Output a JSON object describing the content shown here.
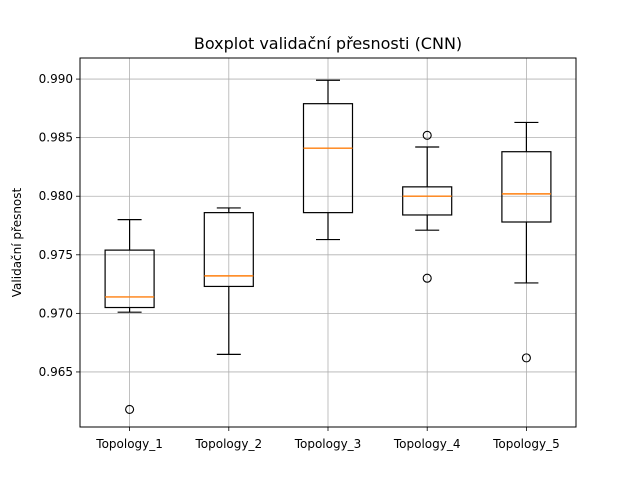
{
  "chart_data": {
    "type": "box",
    "title": "Boxplot validační přesnosti (CNN)",
    "xlabel": "",
    "ylabel": "Validační přesnost",
    "ylim": [
      0.9603,
      0.9918
    ],
    "yticks": [
      0.965,
      0.97,
      0.975,
      0.98,
      0.985,
      0.99
    ],
    "ytick_labels": [
      "0.965",
      "0.970",
      "0.975",
      "0.980",
      "0.985",
      "0.990"
    ],
    "grid": true,
    "categories": [
      "Topology_1",
      "Topology_2",
      "Topology_3",
      "Topology_4",
      "Topology_5"
    ],
    "boxes": [
      {
        "whisker_low": 0.9701,
        "q1": 0.9705,
        "median": 0.9714,
        "q3": 0.9754,
        "whisker_high": 0.978,
        "outliers": [
          0.9618
        ]
      },
      {
        "whisker_low": 0.9665,
        "q1": 0.9723,
        "median": 0.9732,
        "q3": 0.9786,
        "whisker_high": 0.979,
        "outliers": []
      },
      {
        "whisker_low": 0.9763,
        "q1": 0.9786,
        "median": 0.9841,
        "q3": 0.9879,
        "whisker_high": 0.9899,
        "outliers": []
      },
      {
        "whisker_low": 0.9771,
        "q1": 0.9784,
        "median": 0.98,
        "q3": 0.9808,
        "whisker_high": 0.9842,
        "outliers": [
          0.9852,
          0.973
        ]
      },
      {
        "whisker_low": 0.9726,
        "q1": 0.9778,
        "median": 0.9802,
        "q3": 0.9838,
        "whisker_high": 0.9863,
        "outliers": [
          0.9662
        ]
      }
    ],
    "colors": {
      "box": "#000000",
      "median": "#ff7f0e",
      "grid": "#b0b0b0",
      "background": "#ffffff"
    }
  }
}
